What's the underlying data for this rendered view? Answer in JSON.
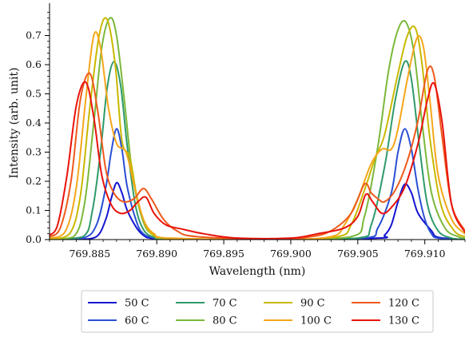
{
  "chart_data": {
    "type": "line",
    "title": "",
    "xlabel": "Wavelength (nm)",
    "ylabel": "Intensity (arb. unit)",
    "xlim": [
      769.882,
      769.913
    ],
    "ylim": [
      0,
      0.8
    ],
    "x_ticks": [
      769.885,
      769.89,
      769.895,
      769.9,
      769.905,
      769.91
    ],
    "x_tick_labels": [
      "769.885",
      "769.890",
      "769.895",
      "769.900",
      "769.905",
      "769.910"
    ],
    "y_ticks": [
      0.0,
      0.1,
      0.2,
      0.3,
      0.4,
      0.5,
      0.6,
      0.7
    ],
    "y_tick_labels": [
      "0.0",
      "0.1",
      "0.2",
      "0.3",
      "0.4",
      "0.5",
      "0.6",
      "0.7"
    ],
    "grid": false,
    "legend_placement": "bottom-outside",
    "legend_columns": 4,
    "series": [
      {
        "name": "50 C",
        "color": "#1414d2",
        "points": [
          [
            769.882,
            0.0
          ],
          [
            769.884,
            0.0
          ],
          [
            769.8855,
            0.01
          ],
          [
            769.8862,
            0.07
          ],
          [
            769.8866,
            0.14
          ],
          [
            769.887,
            0.195
          ],
          [
            769.8874,
            0.16
          ],
          [
            769.8878,
            0.1
          ],
          [
            769.8885,
            0.04
          ],
          [
            769.889,
            0.015
          ],
          [
            769.8895,
            0.005
          ],
          [
            769.891,
            0.0
          ],
          [
            769.899,
            0.0
          ],
          [
            769.9065,
            0.005
          ],
          [
            769.907,
            0.015
          ],
          [
            769.9075,
            0.05
          ],
          [
            769.908,
            0.13
          ],
          [
            769.9085,
            0.19
          ],
          [
            769.909,
            0.16
          ],
          [
            769.9095,
            0.09
          ],
          [
            769.9105,
            0.03
          ],
          [
            769.911,
            0.008
          ],
          [
            769.913,
            0.0
          ]
        ]
      },
      {
        "name": "60 C",
        "color": "#2a4fd4",
        "points": [
          [
            769.882,
            0.0
          ],
          [
            769.8845,
            0.005
          ],
          [
            769.8855,
            0.05
          ],
          [
            769.8862,
            0.18
          ],
          [
            769.8866,
            0.3
          ],
          [
            769.887,
            0.38
          ],
          [
            769.8874,
            0.31
          ],
          [
            769.8878,
            0.18
          ],
          [
            769.8885,
            0.06
          ],
          [
            769.889,
            0.02
          ],
          [
            769.8898,
            0.005
          ],
          [
            769.891,
            0.0
          ],
          [
            769.899,
            0.0
          ],
          [
            769.9055,
            0.005
          ],
          [
            769.9065,
            0.04
          ],
          [
            769.9075,
            0.16
          ],
          [
            769.908,
            0.3
          ],
          [
            769.9085,
            0.38
          ],
          [
            769.909,
            0.31
          ],
          [
            769.9095,
            0.17
          ],
          [
            769.91,
            0.07
          ],
          [
            769.9105,
            0.02
          ],
          [
            769.911,
            0.005
          ],
          [
            769.913,
            0.0
          ]
        ]
      },
      {
        "name": "70 C",
        "color": "#2f9a6a",
        "points": [
          [
            769.882,
            0.0
          ],
          [
            769.8845,
            0.01
          ],
          [
            769.8852,
            0.1
          ],
          [
            769.8858,
            0.3
          ],
          [
            769.8863,
            0.52
          ],
          [
            769.8868,
            0.61
          ],
          [
            769.8873,
            0.53
          ],
          [
            769.8878,
            0.32
          ],
          [
            769.8884,
            0.12
          ],
          [
            769.889,
            0.035
          ],
          [
            769.8898,
            0.008
          ],
          [
            769.891,
            0.0
          ],
          [
            769.899,
            0.0
          ],
          [
            769.905,
            0.005
          ],
          [
            769.906,
            0.05
          ],
          [
            769.907,
            0.25
          ],
          [
            769.9078,
            0.48
          ],
          [
            769.9085,
            0.61
          ],
          [
            769.909,
            0.55
          ],
          [
            769.9096,
            0.32
          ],
          [
            769.9102,
            0.12
          ],
          [
            769.911,
            0.03
          ],
          [
            769.912,
            0.005
          ],
          [
            769.913,
            0.0
          ]
        ]
      },
      {
        "name": "80 C",
        "color": "#7ab83a",
        "points": [
          [
            769.882,
            0.0
          ],
          [
            769.8838,
            0.01
          ],
          [
            769.8846,
            0.12
          ],
          [
            769.8853,
            0.4
          ],
          [
            769.8859,
            0.66
          ],
          [
            769.8865,
            0.76
          ],
          [
            769.887,
            0.7
          ],
          [
            769.8876,
            0.47
          ],
          [
            769.8882,
            0.22
          ],
          [
            769.889,
            0.06
          ],
          [
            769.8898,
            0.015
          ],
          [
            769.891,
            0.0
          ],
          [
            769.899,
            0.0
          ],
          [
            769.9045,
            0.01
          ],
          [
            769.9055,
            0.08
          ],
          [
            769.9065,
            0.32
          ],
          [
            769.9073,
            0.58
          ],
          [
            769.908,
            0.72
          ],
          [
            769.9086,
            0.745
          ],
          [
            769.9092,
            0.64
          ],
          [
            769.9098,
            0.4
          ],
          [
            769.9105,
            0.16
          ],
          [
            769.9115,
            0.04
          ],
          [
            769.9125,
            0.01
          ],
          [
            769.913,
            0.005
          ]
        ]
      },
      {
        "name": "90 C",
        "color": "#c9b800",
        "points": [
          [
            769.882,
            0.0
          ],
          [
            769.8835,
            0.02
          ],
          [
            769.8843,
            0.15
          ],
          [
            769.885,
            0.45
          ],
          [
            769.8857,
            0.7
          ],
          [
            769.8863,
            0.755
          ],
          [
            769.8869,
            0.6
          ],
          [
            769.8874,
            0.34
          ],
          [
            769.888,
            0.28
          ],
          [
            769.8886,
            0.13
          ],
          [
            769.8894,
            0.03
          ],
          [
            769.8905,
            0.005
          ],
          [
            769.892,
            0.0
          ],
          [
            769.899,
            0.0
          ],
          [
            769.9035,
            0.01
          ],
          [
            769.9045,
            0.05
          ],
          [
            769.9055,
            0.17
          ],
          [
            769.9063,
            0.28
          ],
          [
            769.907,
            0.36
          ],
          [
            769.908,
            0.57
          ],
          [
            769.9087,
            0.7
          ],
          [
            769.9093,
            0.725
          ],
          [
            769.9098,
            0.6
          ],
          [
            769.9104,
            0.34
          ],
          [
            769.9112,
            0.12
          ],
          [
            769.9122,
            0.03
          ],
          [
            769.913,
            0.01
          ]
        ]
      },
      {
        "name": "100 C",
        "color": "#f5a61a",
        "points": [
          [
            769.882,
            0.005
          ],
          [
            769.8832,
            0.03
          ],
          [
            769.884,
            0.18
          ],
          [
            769.8847,
            0.48
          ],
          [
            769.8853,
            0.7
          ],
          [
            769.8858,
            0.66
          ],
          [
            769.8864,
            0.45
          ],
          [
            769.887,
            0.33
          ],
          [
            769.8877,
            0.3
          ],
          [
            769.8883,
            0.19
          ],
          [
            769.889,
            0.07
          ],
          [
            769.8898,
            0.02
          ],
          [
            769.891,
            0.005
          ],
          [
            769.899,
            0.0
          ],
          [
            769.903,
            0.01
          ],
          [
            769.904,
            0.05
          ],
          [
            769.905,
            0.14
          ],
          [
            769.906,
            0.26
          ],
          [
            769.9068,
            0.31
          ],
          [
            769.9075,
            0.31
          ],
          [
            769.908,
            0.38
          ],
          [
            769.9087,
            0.55
          ],
          [
            769.9094,
            0.69
          ],
          [
            769.9099,
            0.66
          ],
          [
            769.9104,
            0.47
          ],
          [
            769.911,
            0.22
          ],
          [
            769.912,
            0.07
          ],
          [
            769.913,
            0.02
          ]
        ]
      },
      {
        "name": "120 C",
        "color": "#ee5a1c",
        "points": [
          [
            769.882,
            0.01
          ],
          [
            769.8828,
            0.04
          ],
          [
            769.8836,
            0.2
          ],
          [
            769.8843,
            0.48
          ],
          [
            769.885,
            0.57
          ],
          [
            769.8856,
            0.44
          ],
          [
            769.8862,
            0.24
          ],
          [
            769.8868,
            0.16
          ],
          [
            769.8875,
            0.13
          ],
          [
            769.8883,
            0.14
          ],
          [
            769.889,
            0.175
          ],
          [
            769.8896,
            0.14
          ],
          [
            769.8905,
            0.07
          ],
          [
            769.8915,
            0.03
          ],
          [
            769.893,
            0.01
          ],
          [
            769.899,
            0.0
          ],
          [
            769.9015,
            0.01
          ],
          [
            769.903,
            0.03
          ],
          [
            769.9045,
            0.09
          ],
          [
            769.9055,
            0.19
          ],
          [
            769.906,
            0.16
          ],
          [
            769.9065,
            0.14
          ],
          [
            769.907,
            0.13
          ],
          [
            769.9078,
            0.17
          ],
          [
            769.9087,
            0.27
          ],
          [
            769.9095,
            0.41
          ],
          [
            769.9102,
            0.58
          ],
          [
            769.9107,
            0.56
          ],
          [
            769.9113,
            0.35
          ],
          [
            769.912,
            0.12
          ],
          [
            769.913,
            0.03
          ]
        ]
      },
      {
        "name": "130 C",
        "color": "#e8130c",
        "points": [
          [
            769.882,
            0.015
          ],
          [
            769.8826,
            0.05
          ],
          [
            769.8833,
            0.22
          ],
          [
            769.884,
            0.46
          ],
          [
            769.8847,
            0.54
          ],
          [
            769.8853,
            0.42
          ],
          [
            769.8859,
            0.22
          ],
          [
            769.8866,
            0.12
          ],
          [
            769.8873,
            0.09
          ],
          [
            769.888,
            0.1
          ],
          [
            769.8886,
            0.13
          ],
          [
            769.8892,
            0.145
          ],
          [
            769.8898,
            0.09
          ],
          [
            769.8907,
            0.05
          ],
          [
            769.892,
            0.035
          ],
          [
            769.8935,
            0.02
          ],
          [
            769.896,
            0.005
          ],
          [
            769.9,
            0.005
          ],
          [
            769.902,
            0.02
          ],
          [
            769.904,
            0.04
          ],
          [
            769.905,
            0.08
          ],
          [
            769.9056,
            0.155
          ],
          [
            769.9061,
            0.13
          ],
          [
            769.9068,
            0.09
          ],
          [
            769.9075,
            0.11
          ],
          [
            769.9085,
            0.18
          ],
          [
            769.9095,
            0.33
          ],
          [
            769.9102,
            0.48
          ],
          [
            769.9107,
            0.535
          ],
          [
            769.9113,
            0.4
          ],
          [
            769.912,
            0.12
          ],
          [
            769.913,
            0.025
          ]
        ]
      }
    ]
  }
}
